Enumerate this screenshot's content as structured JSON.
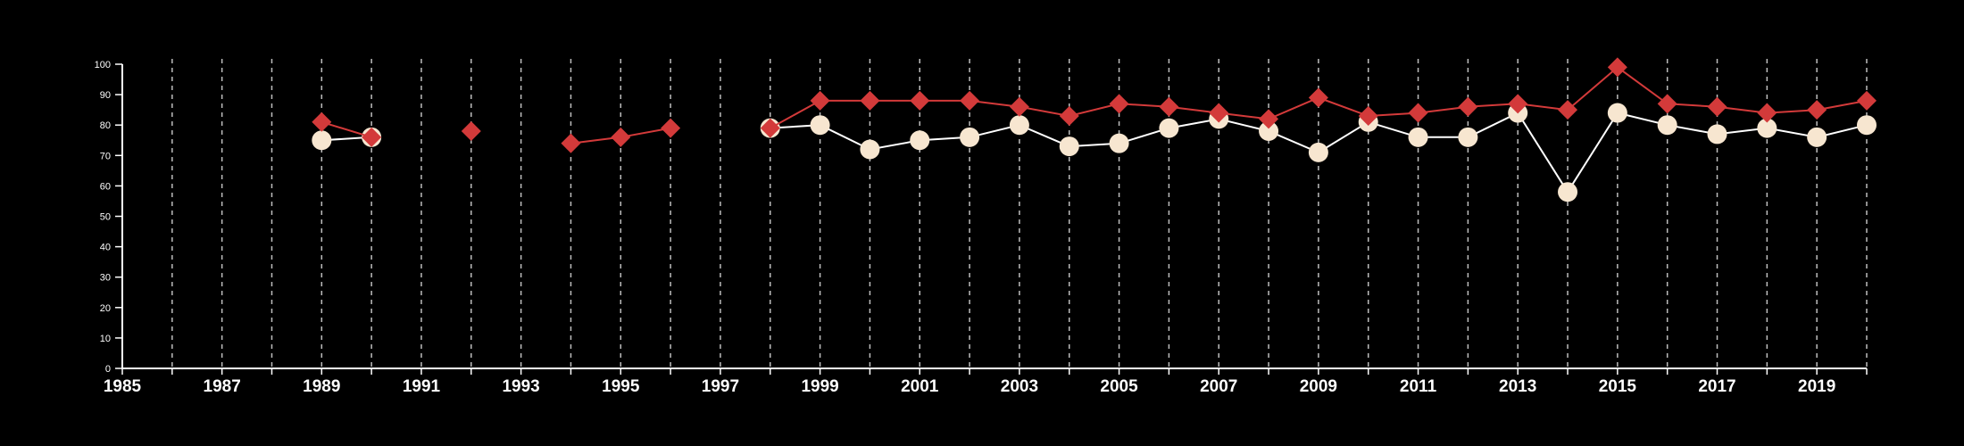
{
  "chart_data": {
    "type": "line",
    "title": "",
    "xlabel": "",
    "ylabel": "",
    "xlim": [
      1985,
      2020
    ],
    "ylim": [
      0,
      100
    ],
    "grid": "vertical-dashed",
    "x_tick_labels": [
      "1985",
      "1987",
      "1989",
      "1991",
      "1993",
      "1995",
      "1997",
      "1999",
      "2001",
      "2003",
      "2005",
      "2007",
      "2009",
      "2011",
      "2013",
      "2015",
      "2017",
      "2019"
    ],
    "y_tick_labels": [
      "0",
      "10",
      "20",
      "30",
      "40",
      "50",
      "60",
      "70",
      "80",
      "90",
      "100"
    ],
    "x": [
      1989,
      1990,
      1992,
      1994,
      1995,
      1996,
      1998,
      1999,
      2000,
      2001,
      2002,
      2003,
      2004,
      2005,
      2006,
      2007,
      2008,
      2009,
      2010,
      2011,
      2012,
      2013,
      2014,
      2015,
      2016,
      2017,
      2018,
      2019,
      2020
    ],
    "series": [
      {
        "marker": "diamond",
        "color": "#d33a3a",
        "values": [
          81,
          76,
          78,
          74,
          76,
          79,
          79,
          88,
          88,
          88,
          88,
          86,
          83,
          87,
          86,
          84,
          82,
          89,
          83,
          84,
          86,
          87,
          85,
          99,
          87,
          86,
          84,
          85,
          88
        ]
      },
      {
        "marker": "circle",
        "color": "#f7e6d0",
        "values": [
          75,
          76,
          null,
          null,
          null,
          null,
          79,
          80,
          72,
          75,
          76,
          80,
          73,
          74,
          79,
          82,
          78,
          71,
          81,
          76,
          76,
          84,
          58,
          84,
          80,
          77,
          79,
          76,
          80
        ]
      }
    ]
  }
}
